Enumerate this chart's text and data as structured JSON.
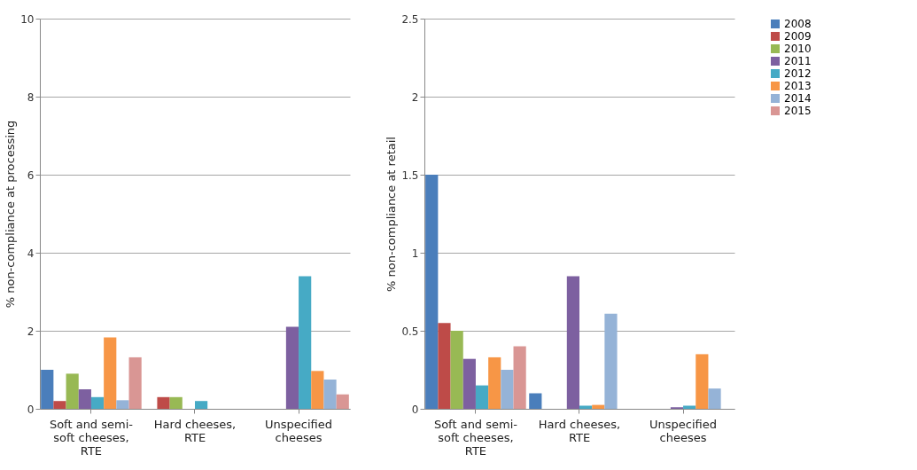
{
  "chart_data": [
    {
      "type": "bar",
      "ylabel": "% non-compliance at processing",
      "categories": [
        "Soft and semi-soft cheeses, RTE",
        "Hard cheeses, RTE",
        "Unspecified cheeses"
      ],
      "ylim": [
        0,
        10
      ],
      "yticks": [
        0,
        2,
        4,
        6,
        8,
        10
      ],
      "grid": "y",
      "legend": false,
      "series": [
        {
          "color": "#4a7ebb",
          "values": [
            1.0,
            0,
            0
          ]
        },
        {
          "color": "#be4b48",
          "values": [
            0.2,
            0.3,
            0
          ]
        },
        {
          "color": "#98b954",
          "values": [
            0.9,
            0.3,
            0
          ]
        },
        {
          "color": "#7d60a0",
          "values": [
            0.5,
            0,
            2.1
          ]
        },
        {
          "color": "#46aac5",
          "values": [
            0.3,
            0.2,
            3.4
          ]
        },
        {
          "color": "#f79646",
          "values": [
            1.83,
            0,
            0.97
          ]
        },
        {
          "color": "#95b3d7",
          "values": [
            0.22,
            0,
            0.75
          ]
        },
        {
          "color": "#d99694",
          "values": [
            1.32,
            0,
            0.37
          ]
        }
      ]
    },
    {
      "type": "bar",
      "ylabel": "% non-compliance at retail",
      "categories": [
        "Soft and semi-soft cheeses, RTE",
        "Hard cheeses, RTE",
        "Unspecified cheeses"
      ],
      "ylim": [
        0,
        2.5
      ],
      "yticks": [
        0,
        0.5,
        1,
        1.5,
        2,
        2.5
      ],
      "grid": "y",
      "legend": "right",
      "series": [
        {
          "name": "2008",
          "color": "#4a7ebb",
          "values": [
            1.5,
            0.1,
            0
          ]
        },
        {
          "name": "2009",
          "color": "#be4b48",
          "values": [
            0.55,
            0,
            0
          ]
        },
        {
          "name": "2010",
          "color": "#98b954",
          "values": [
            0.5,
            0,
            0
          ]
        },
        {
          "name": "2011",
          "color": "#7d60a0",
          "values": [
            0.32,
            0.85,
            0.01
          ]
        },
        {
          "name": "2012",
          "color": "#46aac5",
          "values": [
            0.15,
            0.02,
            0.02
          ]
        },
        {
          "name": "2013",
          "color": "#f79646",
          "values": [
            0.33,
            0.025,
            0.35
          ]
        },
        {
          "name": "2014",
          "color": "#95b3d7",
          "values": [
            0.25,
            0.61,
            0.13
          ]
        },
        {
          "name": "2015",
          "color": "#d99694",
          "values": [
            0.4,
            0,
            0
          ]
        }
      ]
    }
  ]
}
